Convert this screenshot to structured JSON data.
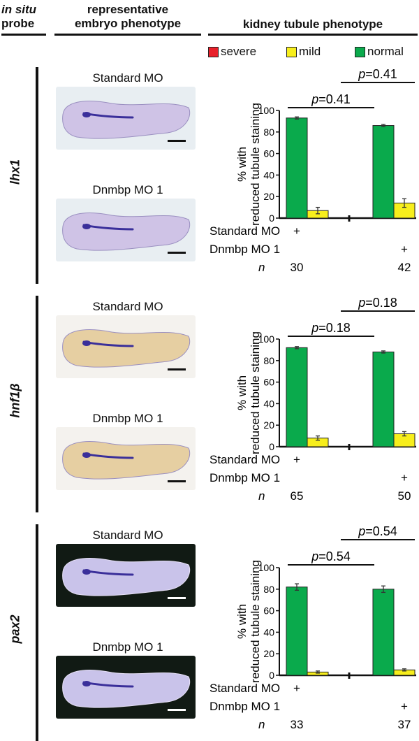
{
  "header": {
    "probe_line1": "in situ",
    "probe_line2": "probe",
    "rep_line1": "representative",
    "rep_line2": "embryo phenotype",
    "kidney": "kidney tubule phenotype"
  },
  "legend": [
    {
      "label": "severe",
      "color": "#e8202a"
    },
    {
      "label": "mild",
      "color": "#f7ee1c"
    },
    {
      "label": "normal",
      "color": "#0aaa4c"
    }
  ],
  "colors": {
    "normal": "#0aaa4c",
    "mild": "#f7ee1c",
    "bg_light": "#e8eef2",
    "bg_dark": "#111a14",
    "stain": "#3a2f9a"
  },
  "panels": [
    {
      "probe": "lhx1",
      "cond1": "Standard MO",
      "cond2": "Dnmbp MO 1",
      "background": "light"
    },
    {
      "probe": "hnf1β",
      "cond1": "Standard MO",
      "cond2": "Dnmbp MO 1",
      "background": "tan"
    },
    {
      "probe": "pax2",
      "cond1": "Standard MO",
      "cond2": "Dnmbp MO 1",
      "background": "dark"
    }
  ],
  "chart_data": [
    {
      "type": "bar",
      "probe": "lhx1",
      "ylabel": "% with reduced tubule staining",
      "ylim": [
        0,
        100
      ],
      "yticks": [
        0,
        20,
        40,
        60,
        80,
        100
      ],
      "groups": [
        "Standard MO",
        "Dnmbp MO 1"
      ],
      "series": [
        {
          "name": "normal",
          "values": [
            93,
            86
          ],
          "errors": [
            1,
            1
          ]
        },
        {
          "name": "mild",
          "values": [
            7,
            14
          ],
          "errors": [
            3,
            4
          ]
        },
        {
          "name": "severe",
          "values": [
            0,
            0
          ],
          "errors": [
            0,
            0
          ]
        }
      ],
      "p_values": [
        "p=0.41",
        "p=0.41"
      ],
      "p_prefix": "p",
      "p_suffix": [
        "=0.41",
        "=0.41"
      ],
      "rows": [
        {
          "label": "Standard MO",
          "marks": [
            "+",
            ""
          ]
        },
        {
          "label": "Dnmbp MO 1",
          "marks": [
            "",
            "+"
          ]
        },
        {
          "label": "n",
          "marks": [
            "30",
            "42"
          ]
        }
      ]
    },
    {
      "type": "bar",
      "probe": "hnf1β",
      "ylabel": "% with reduced tubule staining",
      "ylim": [
        0,
        100
      ],
      "yticks": [
        0,
        20,
        40,
        60,
        80,
        100
      ],
      "groups": [
        "Standard MO",
        "Dnmbp MO 1"
      ],
      "series": [
        {
          "name": "normal",
          "values": [
            92,
            88
          ],
          "errors": [
            1,
            1
          ]
        },
        {
          "name": "mild",
          "values": [
            8,
            12
          ],
          "errors": [
            2,
            2
          ]
        },
        {
          "name": "severe",
          "values": [
            0,
            0
          ],
          "errors": [
            0,
            0
          ]
        }
      ],
      "p_values": [
        "p=0.18",
        "p=0.18"
      ],
      "p_prefix": "p",
      "p_suffix": [
        "=0.18",
        "=0.18"
      ],
      "rows": [
        {
          "label": "Standard MO",
          "marks": [
            "+",
            ""
          ]
        },
        {
          "label": "Dnmbp MO 1",
          "marks": [
            "",
            "+"
          ]
        },
        {
          "label": "n",
          "marks": [
            "65",
            "50"
          ]
        }
      ]
    },
    {
      "type": "bar",
      "probe": "pax2",
      "ylabel": "% with reduced tubule staining",
      "ylim": [
        0,
        100
      ],
      "yticks": [
        0,
        20,
        40,
        60,
        80,
        100
      ],
      "groups": [
        "Standard MO",
        "Dnmbp MO 1"
      ],
      "series": [
        {
          "name": "normal",
          "values": [
            82,
            80
          ],
          "errors": [
            3,
            3
          ]
        },
        {
          "name": "mild",
          "values": [
            3,
            5
          ],
          "errors": [
            1,
            1
          ]
        },
        {
          "name": "severe",
          "values": [
            0,
            0
          ],
          "errors": [
            0,
            0
          ]
        }
      ],
      "p_values": [
        "p=0.54",
        "p=0.54"
      ],
      "p_prefix": "p",
      "p_suffix": [
        "=0.54",
        "=0.54"
      ],
      "rows": [
        {
          "label": "Standard MO",
          "marks": [
            "+",
            ""
          ]
        },
        {
          "label": "Dnmbp MO 1",
          "marks": [
            "",
            "+"
          ]
        },
        {
          "label": "n",
          "marks": [
            "33",
            "37"
          ]
        }
      ]
    }
  ]
}
